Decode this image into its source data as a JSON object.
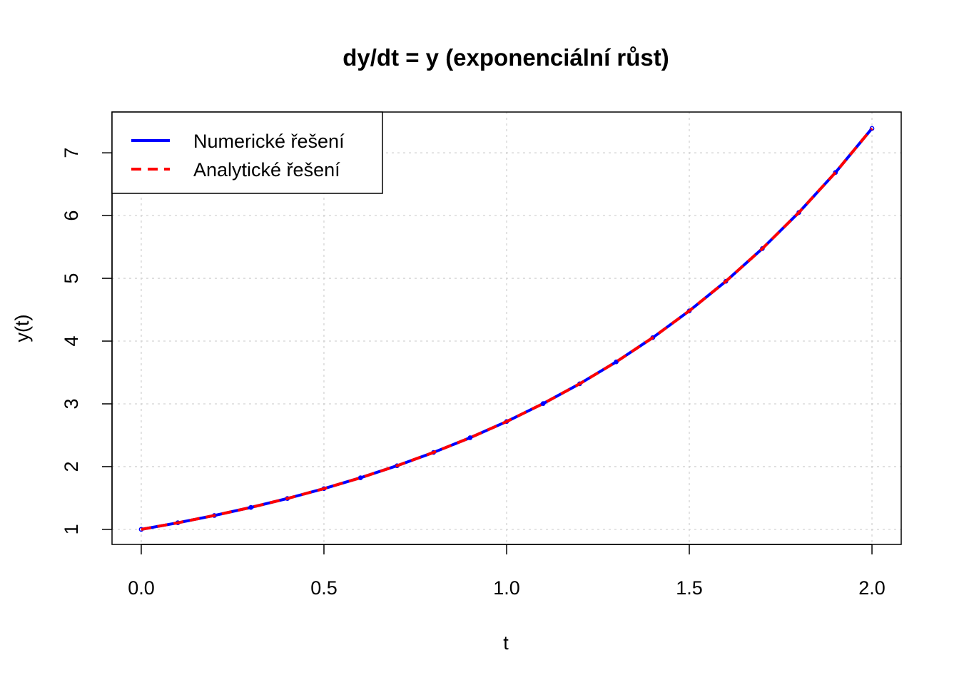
{
  "chart_data": {
    "type": "line",
    "title": "dy/dt = y (exponenciální růst)",
    "xlabel": "t",
    "ylabel": "y(t)",
    "xlim": [
      -0.08,
      2.08
    ],
    "ylim": [
      0.76,
      7.65
    ],
    "x_ticks": [
      0.0,
      0.5,
      1.0,
      1.5,
      2.0
    ],
    "x_tick_labels": [
      "0.0",
      "0.5",
      "1.0",
      "1.5",
      "2.0"
    ],
    "y_ticks": [
      1,
      2,
      3,
      4,
      5,
      6,
      7
    ],
    "y_tick_labels": [
      "1",
      "2",
      "3",
      "4",
      "5",
      "6",
      "7"
    ],
    "grid": true,
    "legend_position": "top-left",
    "x": [
      0.0,
      0.1,
      0.2,
      0.3,
      0.4,
      0.5,
      0.6,
      0.7,
      0.8,
      0.9,
      1.0,
      1.1,
      1.2,
      1.3,
      1.4,
      1.5,
      1.6,
      1.7,
      1.8,
      1.9,
      2.0
    ],
    "series": [
      {
        "name": "Numerické řešení",
        "color": "#0000ff",
        "line_style": "solid",
        "markers": true,
        "values": [
          1.0,
          1.105,
          1.221,
          1.35,
          1.492,
          1.649,
          1.822,
          2.014,
          2.226,
          2.46,
          2.718,
          3.004,
          3.32,
          3.669,
          4.055,
          4.482,
          4.953,
          5.474,
          6.05,
          6.686,
          7.389
        ]
      },
      {
        "name": "Analytické řešení",
        "color": "#ff0000",
        "line_style": "dashed",
        "markers": false,
        "values": [
          1.0,
          1.105,
          1.221,
          1.35,
          1.492,
          1.649,
          1.822,
          2.014,
          2.226,
          2.46,
          2.718,
          3.004,
          3.32,
          3.669,
          4.055,
          4.482,
          4.953,
          5.474,
          6.05,
          6.686,
          7.389
        ]
      }
    ]
  }
}
